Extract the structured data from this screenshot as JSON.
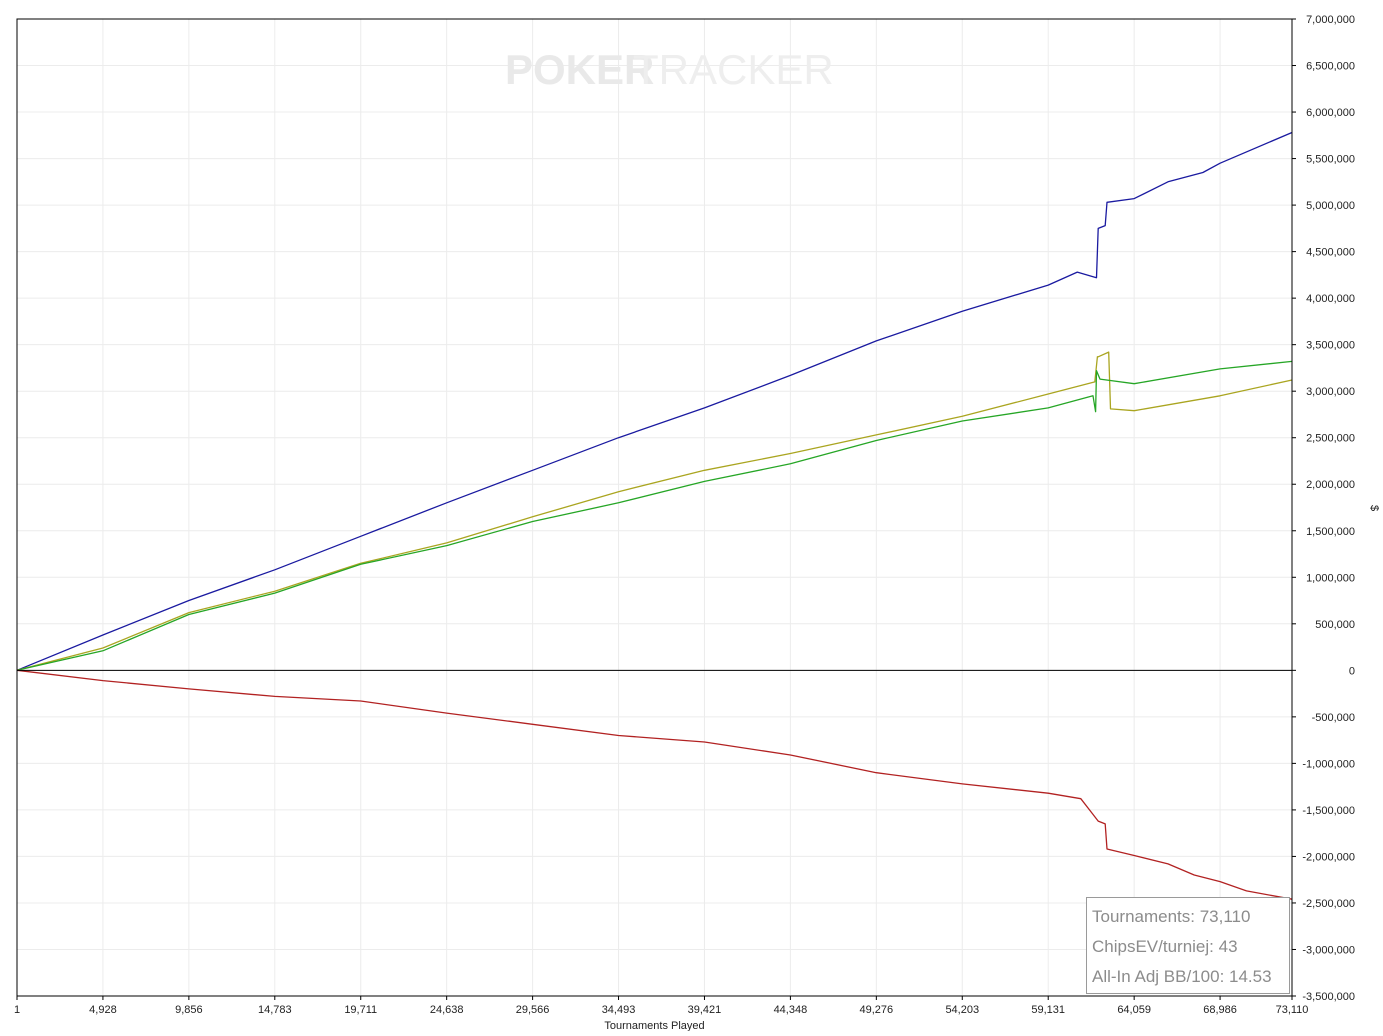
{
  "watermark": {
    "part1": "POKER",
    "part2": "TRACKER"
  },
  "chart_data": {
    "type": "line",
    "xlabel": "Tournaments Played",
    "ylabel": "$",
    "xlim": [
      1,
      73110
    ],
    "ylim": [
      -3500000,
      7000000
    ],
    "grid": true,
    "x_ticks": [
      1,
      4928,
      9856,
      14783,
      19711,
      24638,
      29566,
      34493,
      39421,
      44348,
      49276,
      54203,
      59131,
      64059,
      68986,
      73110
    ],
    "x_tick_labels": [
      "1",
      "4,928",
      "9,856",
      "14,783",
      "19,711",
      "24,638",
      "29,566",
      "34,493",
      "39,421",
      "44,348",
      "49,276",
      "54,203",
      "59,131",
      "64,059",
      "68,986",
      "73,110"
    ],
    "y_ticks": [
      7000000,
      6500000,
      6000000,
      5500000,
      5000000,
      4500000,
      4000000,
      3500000,
      3000000,
      2500000,
      2000000,
      1500000,
      1000000,
      500000,
      0,
      -500000,
      -1000000,
      -1500000,
      -2000000,
      -2500000,
      -3000000,
      -3500000
    ],
    "y_tick_labels": [
      "7,000,000",
      "6,500,000",
      "6,000,000",
      "5,500,000",
      "5,000,000",
      "4,500,000",
      "4,000,000",
      "3,500,000",
      "3,000,000",
      "2,500,000",
      "2,000,000",
      "1,500,000",
      "1,000,000",
      "500,000",
      "0",
      "-500,000",
      "-1,000,000",
      "-1,500,000",
      "-2,000,000",
      "-2,500,000",
      "-3,000,000",
      "-3,500,000"
    ],
    "series": [
      {
        "color": "#1a1aa0",
        "x": [
          1,
          4928,
          9856,
          14783,
          19711,
          24638,
          29566,
          34493,
          39421,
          44348,
          49276,
          54203,
          59131,
          60800,
          61900,
          62000,
          62400,
          62500,
          64059,
          66000,
          68000,
          68986,
          73110
        ],
        "y": [
          0,
          380000,
          750000,
          1080000,
          1440000,
          1800000,
          2150000,
          2500000,
          2820000,
          3170000,
          3540000,
          3860000,
          4140000,
          4280000,
          4220000,
          4750000,
          4780000,
          5030000,
          5070000,
          5250000,
          5350000,
          5450000,
          5780000
        ]
      },
      {
        "color": "#aaa520",
        "x": [
          1,
          4928,
          9856,
          14783,
          19711,
          24638,
          29566,
          34493,
          39421,
          44348,
          49276,
          54203,
          59131,
          61800,
          61950,
          62000,
          62600,
          62700,
          64059,
          68986,
          73110
        ],
        "y": [
          0,
          240000,
          620000,
          850000,
          1150000,
          1370000,
          1650000,
          1920000,
          2150000,
          2330000,
          2530000,
          2730000,
          2970000,
          3100000,
          3370000,
          3370000,
          3420000,
          2810000,
          2790000,
          2950000,
          3120000
        ]
      },
      {
        "color": "#26a626",
        "x": [
          1,
          4928,
          9856,
          14783,
          19711,
          24638,
          29566,
          34493,
          39421,
          44348,
          49276,
          54203,
          59131,
          61700,
          61850,
          61900,
          62100,
          64059,
          68986,
          73110
        ],
        "y": [
          0,
          210000,
          600000,
          830000,
          1140000,
          1340000,
          1600000,
          1800000,
          2030000,
          2220000,
          2470000,
          2680000,
          2820000,
          2950000,
          2780000,
          3220000,
          3130000,
          3080000,
          3240000,
          3320000
        ]
      },
      {
        "color": "#b22222",
        "x": [
          1,
          4928,
          9856,
          14783,
          19711,
          24638,
          29566,
          34493,
          39421,
          44348,
          49276,
          54203,
          59131,
          61000,
          61500,
          62000,
          62400,
          62500,
          64059,
          66000,
          67500,
          68986,
          70500,
          73110
        ],
        "y": [
          0,
          -110000,
          -200000,
          -280000,
          -330000,
          -460000,
          -580000,
          -700000,
          -770000,
          -910000,
          -1100000,
          -1220000,
          -1320000,
          -1380000,
          -1500000,
          -1620000,
          -1650000,
          -1920000,
          -1990000,
          -2080000,
          -2200000,
          -2270000,
          -2370000,
          -2460000
        ]
      }
    ]
  },
  "stats": {
    "tournaments": "Tournaments: 73,110",
    "chipsev": "ChipsEV/turniej: 43",
    "allin": "All-In Adj BB/100: 14.53"
  }
}
